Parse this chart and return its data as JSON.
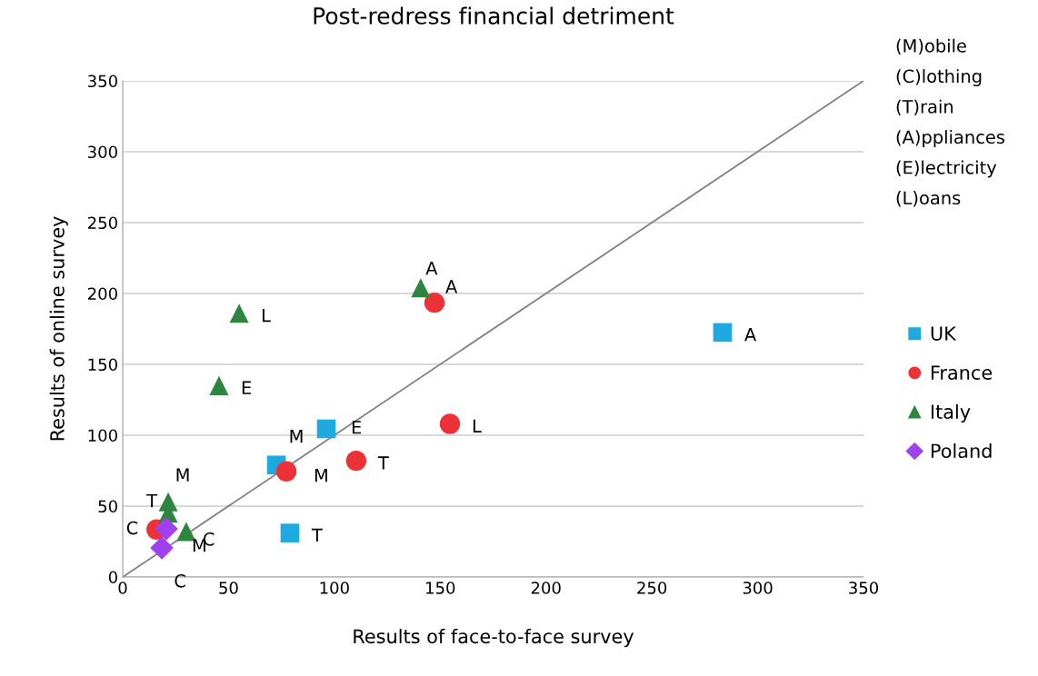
{
  "chart_data": {
    "type": "scatter",
    "title": "Post-redress financial detriment",
    "xlabel": "Results of face-to-face survey",
    "ylabel": "Results of online survey",
    "xlim": [
      0,
      350
    ],
    "ylim": [
      0,
      350
    ],
    "xticks": [
      0,
      50,
      100,
      150,
      200,
      250,
      300,
      350
    ],
    "yticks": [
      0,
      50,
      100,
      150,
      200,
      250,
      300,
      350
    ],
    "grid": "y",
    "legend": "right",
    "annotations": [
      "(M)obile",
      "(C)lothing",
      "(T)rain",
      "(A)ppliances",
      "(E)lectricity",
      "(L)oans"
    ],
    "series": [
      {
        "type": "line",
        "color": "#808080",
        "x": [
          0,
          350
        ],
        "values": [
          0,
          350
        ],
        "marker": "none"
      },
      {
        "name": "UK",
        "color": "#1fa9e1",
        "marker": "square",
        "x": [
          72.6,
          96.2,
          79,
          283.4
        ],
        "values": [
          79,
          104.5,
          31,
          172.5
        ],
        "value_labels": [
          "M",
          "E",
          "T",
          "A"
        ]
      },
      {
        "name": "France",
        "color": "#ec3237",
        "marker": "circle",
        "x": [
          77.3,
          110.3,
          154.6,
          147.3,
          16
        ],
        "values": [
          74.5,
          82,
          108,
          193.5,
          33.5
        ],
        "value_labels": [
          "M",
          "T",
          "L",
          "A",
          "C"
        ]
      },
      {
        "name": "Italy",
        "color": "#2e8540",
        "marker": "triangle",
        "x": [
          140.8,
          55,
          45.5,
          21.5,
          21.5,
          30
        ],
        "values": [
          204,
          186,
          135,
          53,
          45,
          32
        ],
        "value_labels": [
          "A",
          "L",
          "E",
          "M",
          "T",
          "C"
        ]
      },
      {
        "name": "Poland",
        "color": "#a040f0",
        "marker": "diamond",
        "x": [
          20.6,
          18.5
        ],
        "values": [
          34,
          20.5
        ],
        "value_labels": [
          "M",
          "C"
        ]
      }
    ]
  }
}
